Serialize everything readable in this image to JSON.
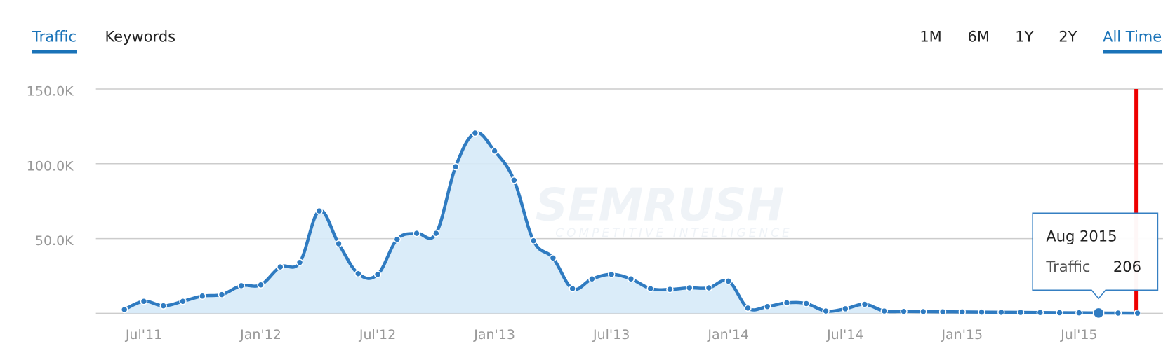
{
  "tabs": [
    "Traffic",
    "Keywords"
  ],
  "active_tab": 0,
  "ranges": [
    "1M",
    "6M",
    "1Y",
    "2Y",
    "All Time"
  ],
  "active_range": 4,
  "watermark": {
    "brand": "SEMRUSH",
    "tagline": "COMPETITIVE INTELLIGENCE"
  },
  "chart_data": {
    "type": "line",
    "categories": [
      null,
      "Jul'11",
      null,
      null,
      null,
      null,
      null,
      "Jan'12",
      null,
      null,
      null,
      null,
      null,
      "Jul'12",
      null,
      null,
      null,
      null,
      null,
      "Jan'13",
      null,
      null,
      null,
      null,
      null,
      "Jul'13",
      null,
      null,
      null,
      null,
      null,
      "Jan'14",
      null,
      null,
      null,
      null,
      null,
      "Jul'14",
      null,
      null,
      null,
      null,
      null,
      "Jan'15",
      null,
      null,
      null,
      null,
      null,
      "Jul'15",
      null,
      null,
      null
    ],
    "series": [
      {
        "name": "Traffic",
        "color": "#2f7bc1",
        "fill": "#d6eaf8",
        "values": [
          2500,
          8000,
          5000,
          8000,
          11500,
          12500,
          18500,
          19000,
          31000,
          34000,
          68500,
          46500,
          26500,
          26000,
          49500,
          53500,
          53500,
          98000,
          120500,
          108500,
          89000,
          48500,
          37000,
          16500,
          23000,
          26000,
          23000,
          16500,
          16000,
          17000,
          17000,
          21500,
          3500,
          4500,
          7000,
          6500,
          1500,
          3000,
          6000,
          1500,
          1200,
          1100,
          1000,
          900,
          800,
          700,
          600,
          500,
          400,
          300,
          206,
          150,
          100
        ]
      }
    ],
    "ylim": [
      0,
      150000
    ],
    "yticks": [
      {
        "value": 50000,
        "label": "50.0K"
      },
      {
        "value": 100000,
        "label": "100.0K"
      },
      {
        "value": 150000,
        "label": "150.0K"
      }
    ],
    "grid": true,
    "tooltip": {
      "index": 50,
      "title": "Aug 2015"
    }
  }
}
